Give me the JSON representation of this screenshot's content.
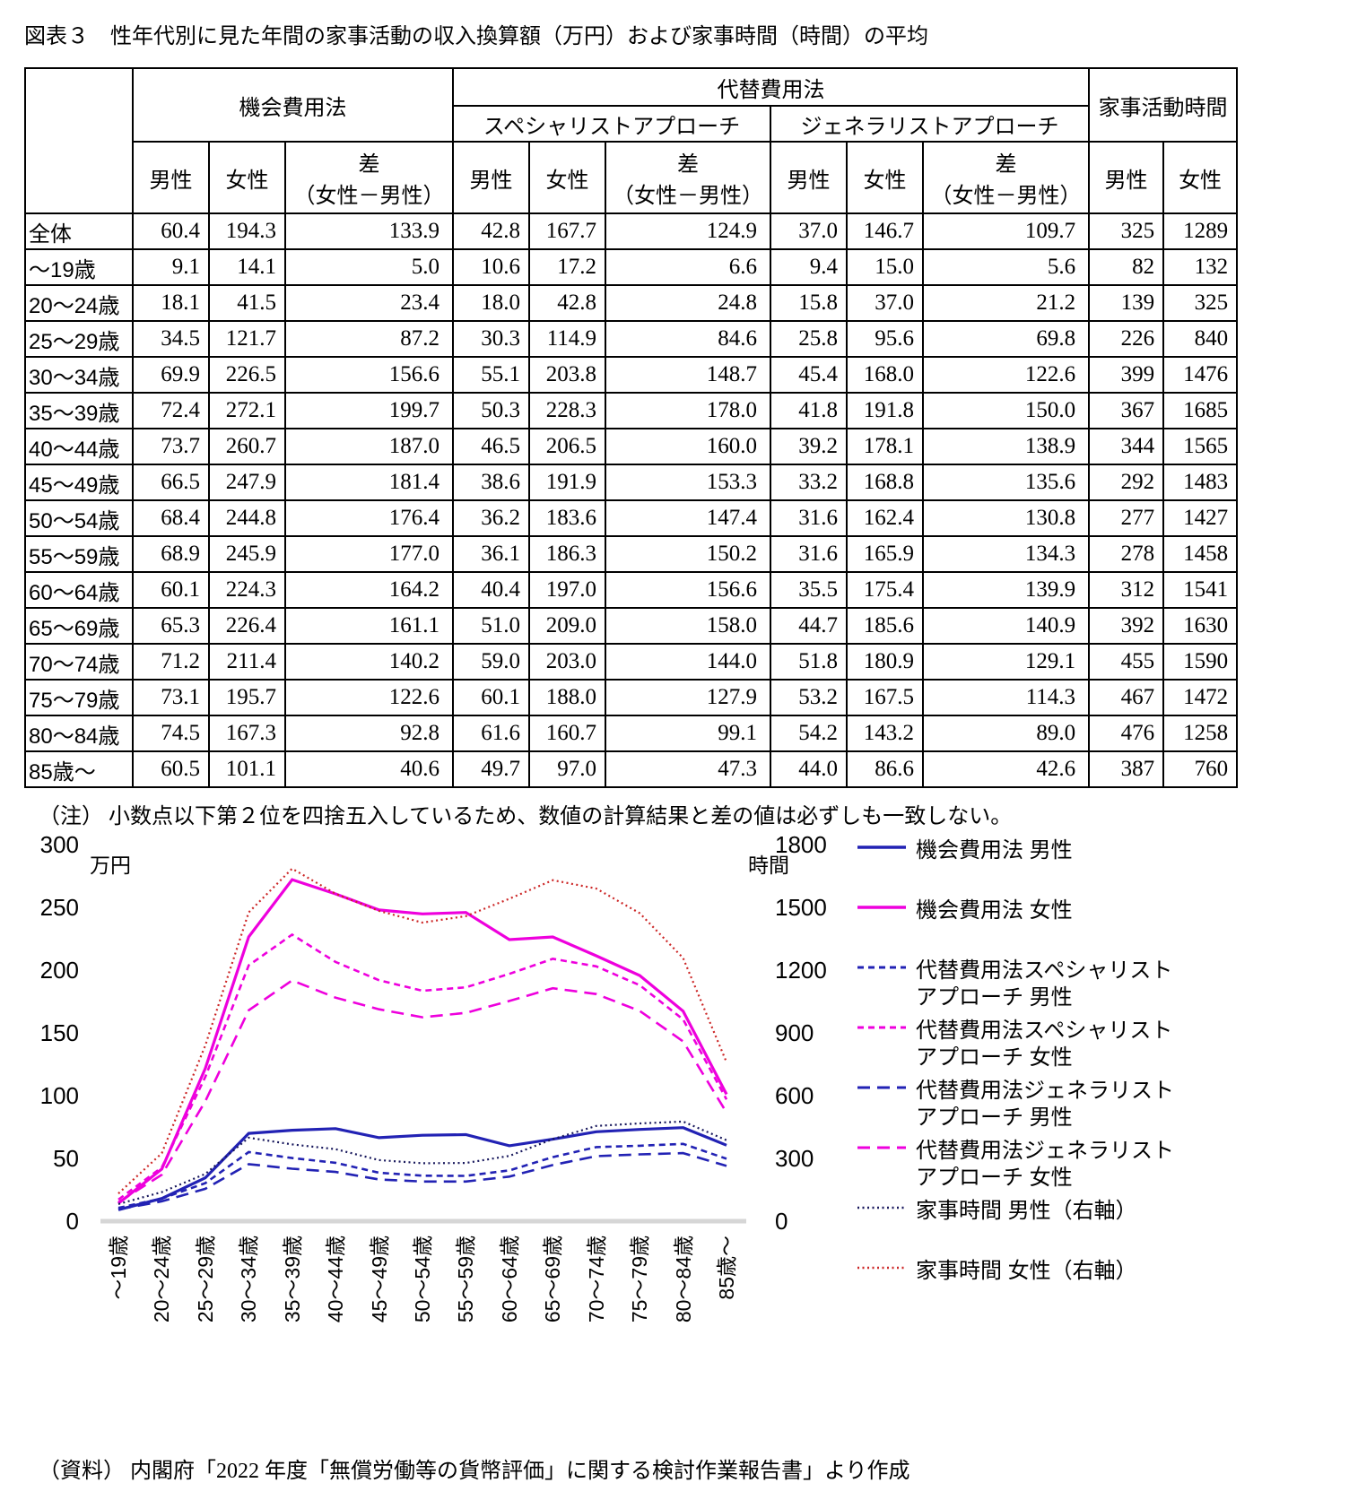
{
  "page": {
    "title": "図表３　性年代別に見た年間の家事活動の収入換算額（万円）および家事時間（時間）の平均",
    "note": "（注） 小数点以下第２位を四捨五入しているため、数値の計算結果と差の値は必ずしも一致しない。",
    "source": "（資料） 内閣府「2022 年度「無償労働等の貨幣評価」に関する検討作業報告書」より作成"
  },
  "table": {
    "groups": {
      "opportunity": "機会費用法",
      "replacement": "代替費用法",
      "specialist": "スペシャリストアプローチ",
      "generalist": "ジェネラリストアプローチ",
      "time": "家事活動時間"
    },
    "sub": {
      "male": "男性",
      "female": "女性",
      "diff1": "差",
      "diff2": "（女性－男性）"
    },
    "rows": [
      {
        "label": "全体",
        "values": [
          "60.4",
          "194.3",
          "133.9",
          "42.8",
          "167.7",
          "124.9",
          "37.0",
          "146.7",
          "109.7",
          "325",
          "1289"
        ]
      },
      {
        "label": "～19歳",
        "values": [
          "9.1",
          "14.1",
          "5.0",
          "10.6",
          "17.2",
          "6.6",
          "9.4",
          "15.0",
          "5.6",
          "82",
          "132"
        ]
      },
      {
        "label": "20～24歳",
        "values": [
          "18.1",
          "41.5",
          "23.4",
          "18.0",
          "42.8",
          "24.8",
          "15.8",
          "37.0",
          "21.2",
          "139",
          "325"
        ]
      },
      {
        "label": "25～29歳",
        "values": [
          "34.5",
          "121.7",
          "87.2",
          "30.3",
          "114.9",
          "84.6",
          "25.8",
          "95.6",
          "69.8",
          "226",
          "840"
        ]
      },
      {
        "label": "30～34歳",
        "values": [
          "69.9",
          "226.5",
          "156.6",
          "55.1",
          "203.8",
          "148.7",
          "45.4",
          "168.0",
          "122.6",
          "399",
          "1476"
        ]
      },
      {
        "label": "35～39歳",
        "values": [
          "72.4",
          "272.1",
          "199.7",
          "50.3",
          "228.3",
          "178.0",
          "41.8",
          "191.8",
          "150.0",
          "367",
          "1685"
        ]
      },
      {
        "label": "40～44歳",
        "values": [
          "73.7",
          "260.7",
          "187.0",
          "46.5",
          "206.5",
          "160.0",
          "39.2",
          "178.1",
          "138.9",
          "344",
          "1565"
        ]
      },
      {
        "label": "45～49歳",
        "values": [
          "66.5",
          "247.9",
          "181.4",
          "38.6",
          "191.9",
          "153.3",
          "33.2",
          "168.8",
          "135.6",
          "292",
          "1483"
        ]
      },
      {
        "label": "50～54歳",
        "values": [
          "68.4",
          "244.8",
          "176.4",
          "36.2",
          "183.6",
          "147.4",
          "31.6",
          "162.4",
          "130.8",
          "277",
          "1427"
        ]
      },
      {
        "label": "55～59歳",
        "values": [
          "68.9",
          "245.9",
          "177.0",
          "36.1",
          "186.3",
          "150.2",
          "31.6",
          "165.9",
          "134.3",
          "278",
          "1458"
        ]
      },
      {
        "label": "60～64歳",
        "values": [
          "60.1",
          "224.3",
          "164.2",
          "40.4",
          "197.0",
          "156.6",
          "35.5",
          "175.4",
          "139.9",
          "312",
          "1541"
        ]
      },
      {
        "label": "65～69歳",
        "values": [
          "65.3",
          "226.4",
          "161.1",
          "51.0",
          "209.0",
          "158.0",
          "44.7",
          "185.6",
          "140.9",
          "392",
          "1630"
        ]
      },
      {
        "label": "70～74歳",
        "values": [
          "71.2",
          "211.4",
          "140.2",
          "59.0",
          "203.0",
          "144.0",
          "51.8",
          "180.9",
          "129.1",
          "455",
          "1590"
        ]
      },
      {
        "label": "75～79歳",
        "values": [
          "73.1",
          "195.7",
          "122.6",
          "60.1",
          "188.0",
          "127.9",
          "53.2",
          "167.5",
          "114.3",
          "467",
          "1472"
        ]
      },
      {
        "label": "80～84歳",
        "values": [
          "74.5",
          "167.3",
          "92.8",
          "61.6",
          "160.7",
          "99.1",
          "54.2",
          "143.2",
          "89.0",
          "476",
          "1258"
        ]
      },
      {
        "label": "85歳～",
        "values": [
          "60.5",
          "101.1",
          "40.6",
          "49.7",
          "97.0",
          "47.3",
          "44.0",
          "86.6",
          "42.6",
          "387",
          "760"
        ]
      }
    ]
  },
  "chart_data": {
    "type": "line",
    "grid": false,
    "legend_position": "right",
    "categories": [
      "～19歳",
      "20～24歳",
      "25～29歳",
      "30～34歳",
      "35～39歳",
      "40～44歳",
      "45～49歳",
      "50～54歳",
      "55～59歳",
      "60～64歳",
      "65～69歳",
      "70～74歳",
      "75～79歳",
      "80～84歳",
      "85歳～"
    ],
    "left_axis": {
      "label": "万円",
      "range": [
        0,
        300
      ],
      "ticks": [
        0,
        50,
        100,
        150,
        200,
        250,
        300
      ]
    },
    "right_axis": {
      "label": "時間",
      "range": [
        0,
        1800
      ],
      "ticks": [
        0,
        300,
        600,
        900,
        1200,
        1500,
        1800
      ]
    },
    "series": [
      {
        "name": "機会費用法 男性",
        "axis": "left",
        "style": "solid",
        "color": "#2222b4",
        "values": [
          9.1,
          18.1,
          34.5,
          69.9,
          72.4,
          73.7,
          66.5,
          68.4,
          68.9,
          60.1,
          65.3,
          71.2,
          73.1,
          74.5,
          60.5
        ]
      },
      {
        "name": "機会費用法 女性",
        "axis": "left",
        "style": "solid",
        "color": "#ee00dd",
        "values": [
          14.1,
          41.5,
          121.7,
          226.5,
          272.1,
          260.7,
          247.9,
          244.8,
          245.9,
          224.3,
          226.4,
          211.4,
          195.7,
          167.3,
          101.1
        ]
      },
      {
        "name": "代替費用法スペシャリストアプローチ 男性",
        "axis": "left",
        "style": "dash-short",
        "color": "#2222b4",
        "values": [
          10.6,
          18.0,
          30.3,
          55.1,
          50.3,
          46.5,
          38.6,
          36.2,
          36.1,
          40.4,
          51.0,
          59.0,
          60.1,
          61.6,
          49.7
        ]
      },
      {
        "name": "代替費用法スペシャリストアプローチ 女性",
        "axis": "left",
        "style": "dash-short",
        "color": "#ee00dd",
        "values": [
          17.2,
          42.8,
          114.9,
          203.8,
          228.3,
          206.5,
          191.9,
          183.6,
          186.3,
          197.0,
          209.0,
          203.0,
          188.0,
          160.7,
          97.0
        ]
      },
      {
        "name": "代替費用法ジェネラリストアプローチ 男性",
        "axis": "left",
        "style": "dash-long",
        "color": "#2222b4",
        "values": [
          9.4,
          15.8,
          25.8,
          45.4,
          41.8,
          39.2,
          33.2,
          31.6,
          31.6,
          35.5,
          44.7,
          51.8,
          53.2,
          54.2,
          44.0
        ]
      },
      {
        "name": "代替費用法ジェネラリストアプローチ 女性",
        "axis": "left",
        "style": "dash-long",
        "color": "#ee00dd",
        "values": [
          15.0,
          37.0,
          95.6,
          168.0,
          191.8,
          178.1,
          168.8,
          162.4,
          165.9,
          175.4,
          185.6,
          180.9,
          167.5,
          143.2,
          86.6
        ]
      },
      {
        "name": "家事時間 男性（右軸）",
        "axis": "right",
        "style": "dotted",
        "color": "#17175c",
        "values": [
          82,
          139,
          226,
          399,
          367,
          344,
          292,
          277,
          278,
          312,
          392,
          455,
          467,
          476,
          387
        ]
      },
      {
        "name": "家事時間 女性（右軸）",
        "axis": "right",
        "style": "dotted",
        "color": "#cc2626",
        "values": [
          132,
          325,
          840,
          1476,
          1685,
          1565,
          1483,
          1427,
          1458,
          1541,
          1630,
          1590,
          1472,
          1258,
          760
        ]
      }
    ]
  },
  "legend": {
    "items": [
      {
        "series": 0,
        "lines": [
          "機会費用法 男性"
        ]
      },
      {
        "series": 1,
        "lines": [
          "機会費用法 女性"
        ]
      },
      {
        "series": 2,
        "lines": [
          "代替費用法スペシャリスト",
          "アプローチ 男性"
        ]
      },
      {
        "series": 3,
        "lines": [
          "代替費用法スペシャリスト",
          "アプローチ 女性"
        ]
      },
      {
        "series": 4,
        "lines": [
          "代替費用法ジェネラリスト",
          "アプローチ 男性"
        ]
      },
      {
        "series": 5,
        "lines": [
          "代替費用法ジェネラリスト",
          "アプローチ 女性"
        ]
      },
      {
        "series": 6,
        "lines": [
          "家事時間 男性（右軸）"
        ]
      },
      {
        "series": 7,
        "lines": [
          "家事時間 女性（右軸）"
        ]
      }
    ]
  }
}
